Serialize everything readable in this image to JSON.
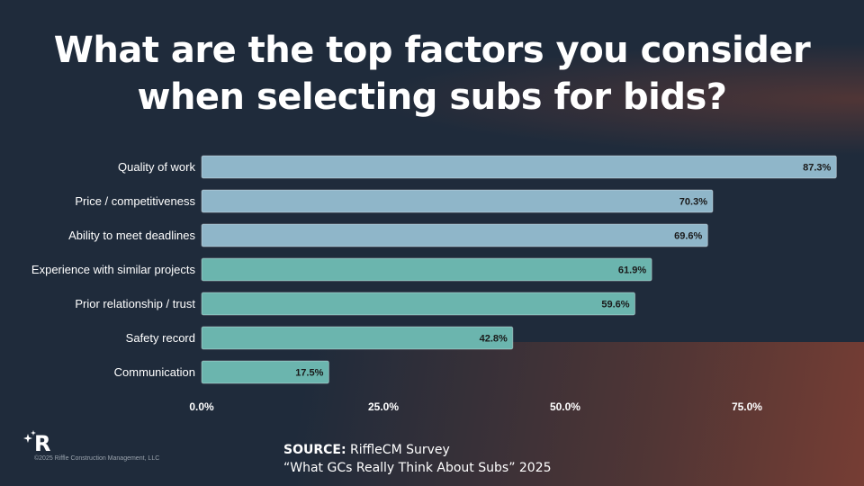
{
  "title": "What are the top factors you consider when selecting subs for bids?",
  "chart_data": {
    "type": "bar",
    "orientation": "horizontal",
    "categories": [
      "Quality of work",
      "Price / competitiveness",
      "Ability to meet deadlines",
      "Experience with similar projects",
      "Prior relationship / trust",
      "Safety record",
      "Communication"
    ],
    "values": [
      87.3,
      70.3,
      69.6,
      61.9,
      59.6,
      42.8,
      17.5
    ],
    "value_labels": [
      "87.3%",
      "70.3%",
      "69.6%",
      "61.9%",
      "59.6%",
      "42.8%",
      "17.5%"
    ],
    "bar_colors": [
      "#8fb6c9",
      "#8fb6c9",
      "#8fb6c9",
      "#6bb5ae",
      "#6bb5ae",
      "#6bb5ae",
      "#6bb5ae"
    ],
    "xticks": [
      0,
      25,
      50,
      75
    ],
    "xtick_labels": [
      "0.0%",
      "25.0%",
      "50.0%",
      "75.0%"
    ],
    "xlim": [
      0,
      88
    ],
    "grid": false
  },
  "footer": {
    "copyright": "©2025 Riffle Construction Management, LLC",
    "source_label": "SOURCE:",
    "source_name": "RiffleCM Survey",
    "source_title": "“What GCs Really Think About Subs” 2025"
  },
  "logo": {
    "icon": "riffle-r-logo",
    "letter": "R"
  }
}
